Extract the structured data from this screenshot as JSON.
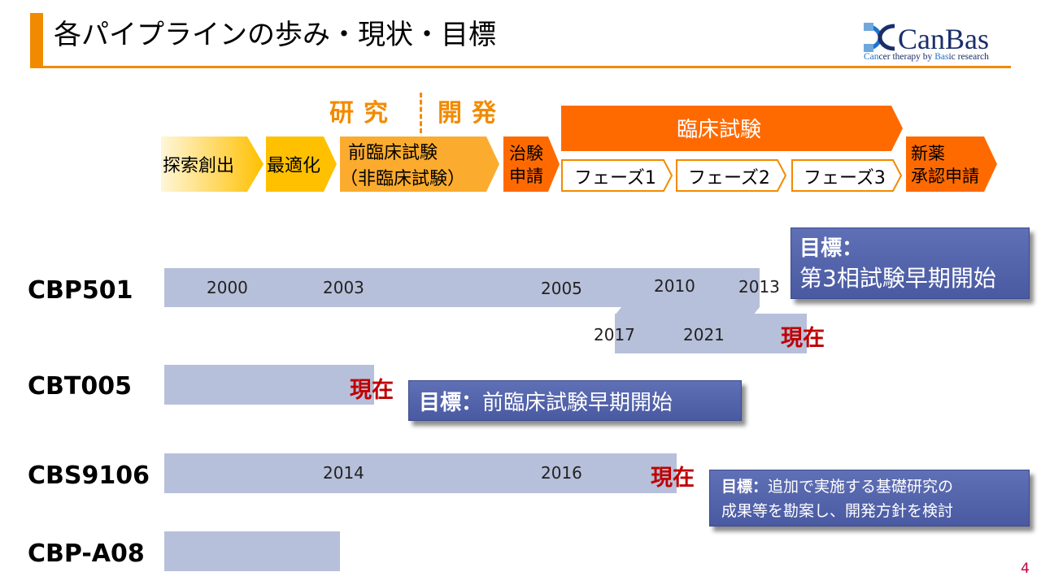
{
  "header": {
    "title": "各パイプラインの歩み・現状・目標",
    "logo_text": "CanBas",
    "logo_tagline_parts": [
      "Can",
      "cer therapy by ",
      "Bas",
      "ic research"
    ]
  },
  "flow": {
    "research_label": "研究",
    "development_label": "開発",
    "stages": {
      "discovery": "探索創出",
      "optimization": "最適化",
      "preclinical_line1": "前臨床試験",
      "preclinical_line2": "（非臨床試験）",
      "ind_line1": "治験",
      "ind_line2": "申請",
      "clinical": "臨床試験",
      "nda_line1": "新薬",
      "nda_line2": "承認申請"
    },
    "phases": [
      "フェーズ1",
      "フェーズ2",
      "フェーズ3"
    ]
  },
  "pipelines": {
    "cbp501": {
      "name": "CBP501",
      "years_top": [
        "2000",
        "2003",
        "2005",
        "2010",
        "2013"
      ],
      "years_bottom": [
        "2017",
        "2021"
      ],
      "current": "現在",
      "goal_label": "目標：",
      "goal_text": "第3相試験早期開始"
    },
    "cbt005": {
      "name": "CBT005",
      "current": "現在",
      "goal_label": "目標：",
      "goal_text": "前臨床試験早期開始"
    },
    "cbs9106": {
      "name": "CBS9106",
      "years": [
        "2014",
        "2016"
      ],
      "current": "現在",
      "goal_label": "目標：",
      "goal_text_line1": "追加で実施する基礎研究の",
      "goal_text_line2": "成果等を勘案し、開発方針を検討"
    },
    "cbpa08": {
      "name": "CBP-A08"
    }
  },
  "page_number": "4",
  "colors": {
    "accent": "#f28a00",
    "clinical": "#ff6a00",
    "bar": "#b7c0da",
    "current": "#c00000",
    "goal": "#5263ad",
    "brand": "#1a2e6a"
  }
}
